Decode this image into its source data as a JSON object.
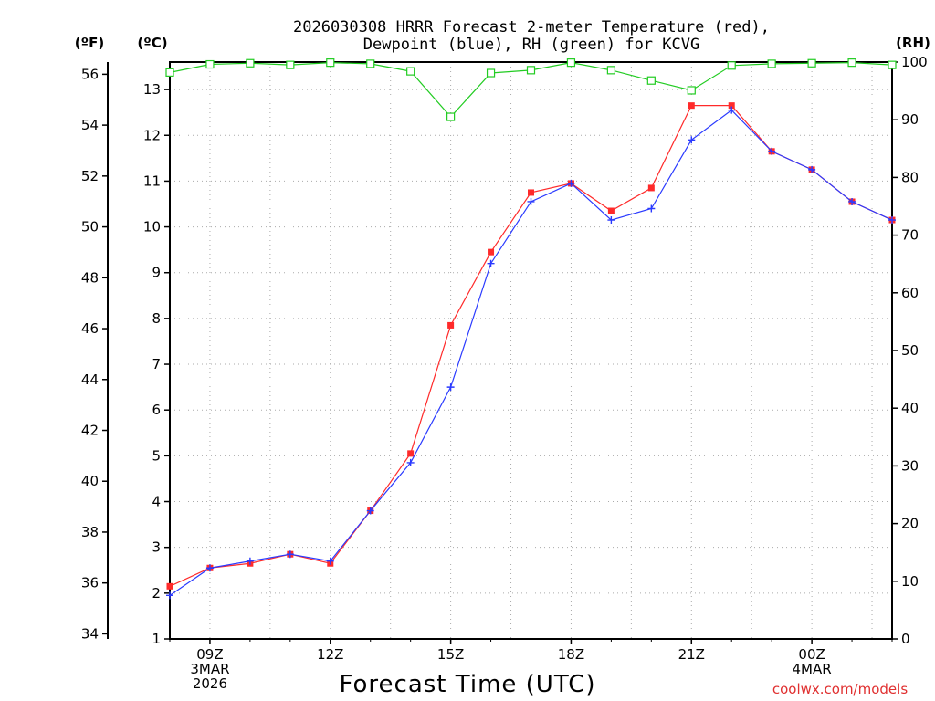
{
  "chart_data": {
    "type": "line",
    "title_line1": "2026030308 HRRR Forecast 2-meter Temperature (red),",
    "title_line2": "Dewpoint (blue), RH (green) for KCVG",
    "axis_label_f": "(ºF)",
    "axis_label_c": "(ºC)",
    "axis_label_rh": "(RH)",
    "xlabel": "Forecast Time (UTC)",
    "credit": "coolwx.com/models",
    "x_hours": [
      8,
      9,
      10,
      11,
      12,
      13,
      14,
      15,
      16,
      17,
      18,
      19,
      20,
      21,
      22,
      23,
      24,
      25,
      26
    ],
    "x_ticks": [
      {
        "hour": 9,
        "lines": [
          "09Z",
          "3MAR",
          "2026"
        ]
      },
      {
        "hour": 12,
        "lines": [
          "12Z"
        ]
      },
      {
        "hour": 15,
        "lines": [
          "15Z"
        ]
      },
      {
        "hour": 18,
        "lines": [
          "18Z"
        ]
      },
      {
        "hour": 21,
        "lines": [
          "21Z"
        ]
      },
      {
        "hour": 24,
        "lines": [
          "00Z",
          "4MAR"
        ]
      }
    ],
    "xlim": [
      8,
      26
    ],
    "ylim_c": [
      1,
      13.6
    ],
    "c_ticks": [
      1,
      2,
      3,
      4,
      5,
      6,
      7,
      8,
      9,
      10,
      11,
      12,
      13
    ],
    "f_ticks": [
      34,
      36,
      38,
      40,
      42,
      44,
      46,
      48,
      50,
      52,
      54,
      56
    ],
    "rh_ticks": [
      0,
      10,
      20,
      30,
      40,
      50,
      60,
      70,
      80,
      90,
      100
    ],
    "rh_range": [
      0,
      100
    ],
    "series": [
      {
        "name": "Temperature",
        "color": "#ff2a2a",
        "marker": "filled-square",
        "values": [
          2.15,
          2.55,
          2.65,
          2.85,
          2.65,
          3.8,
          5.05,
          7.85,
          9.45,
          10.75,
          10.95,
          10.35,
          10.85,
          12.65,
          12.65,
          11.65,
          11.25,
          10.55,
          10.15
        ]
      },
      {
        "name": "Dewpoint",
        "color": "#2a3aff",
        "marker": "plus",
        "values": [
          1.95,
          2.55,
          2.7,
          2.85,
          2.7,
          3.8,
          4.85,
          6.5,
          9.2,
          10.55,
          10.95,
          10.15,
          10.4,
          11.9,
          12.55,
          11.65,
          11.25,
          10.55,
          10.15
        ]
      },
      {
        "name": "RH",
        "color": "#22cc22",
        "marker": "open-square",
        "axis": "rh",
        "values": [
          98.2,
          99.6,
          99.8,
          99.5,
          99.9,
          99.7,
          98.4,
          90.5,
          98.1,
          98.6,
          99.9,
          98.6,
          96.8,
          95.1,
          99.4,
          99.7,
          99.8,
          99.9,
          99.5
        ]
      }
    ]
  }
}
